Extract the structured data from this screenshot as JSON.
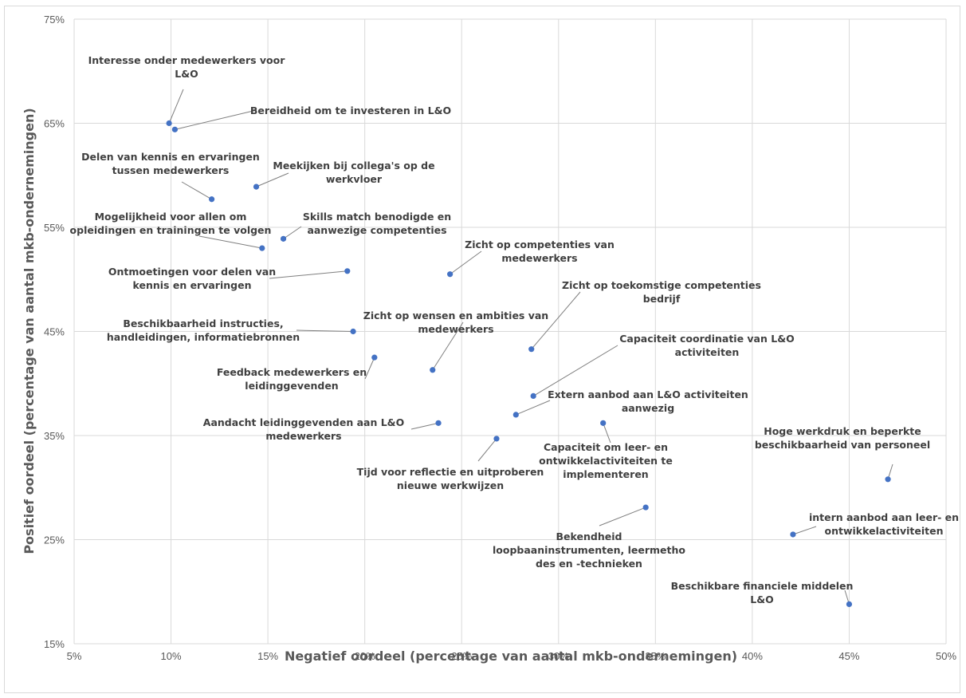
{
  "chart_data": {
    "type": "scatter",
    "title": "",
    "xlabel": "Negatief oordeel (percentage van aantal mkb-ondernemingen)",
    "ylabel": "Positief oordeel (percentage van aantal mkb-ondernemingen)",
    "xlim": [
      5,
      50
    ],
    "ylim": [
      15,
      75
    ],
    "x_ticks": [
      "5%",
      "10%",
      "15%",
      "20%",
      "25%",
      "30%",
      "35%",
      "40%",
      "45%",
      "50%"
    ],
    "y_ticks": [
      "15%",
      "25%",
      "35%",
      "45%",
      "55%",
      "65%",
      "75%"
    ],
    "grid": "vertical and horizontal",
    "legend": "none",
    "marker_color": "#4472c4",
    "points": [
      {
        "x": 9.9,
        "y": 65.0,
        "label": [
          "Interesse onder medewerkers voor",
          "L&O"
        ]
      },
      {
        "x": 10.2,
        "y": 64.4,
        "label": [
          "Bereidheid om te investeren in L&O"
        ]
      },
      {
        "x": 12.1,
        "y": 57.7,
        "label": [
          "Delen van kennis en ervaringen",
          "tussen medewerkers"
        ]
      },
      {
        "x": 14.4,
        "y": 58.9,
        "label": [
          "Meekijken bij collega's op de",
          "werkvloer"
        ]
      },
      {
        "x": 14.7,
        "y": 53.0,
        "label": [
          "Mogelijkheid voor allen om",
          "opleidingen en trainingen te volgen"
        ]
      },
      {
        "x": 15.8,
        "y": 53.9,
        "label": [
          "Skills match benodigde en",
          "aanwezige competenties"
        ]
      },
      {
        "x": 19.1,
        "y": 50.8,
        "label": [
          "Ontmoetingen voor delen van",
          "kennis en ervaringen"
        ]
      },
      {
        "x": 24.4,
        "y": 50.5,
        "label": [
          "Zicht op competenties van",
          "medewerkers"
        ]
      },
      {
        "x": 19.4,
        "y": 45.0,
        "label": [
          "Beschikbaarheid instructies,",
          "handleidingen, informatiebronnen"
        ]
      },
      {
        "x": 28.6,
        "y": 43.3,
        "label": [
          "Zicht op toekomstige competenties",
          "bedrijf"
        ]
      },
      {
        "x": 20.5,
        "y": 42.5,
        "label": [
          "Feedback medewerkers en",
          "leidinggevenden"
        ]
      },
      {
        "x": 23.5,
        "y": 41.3,
        "label": [
          "Zicht op wensen en ambities van",
          "medewerkers"
        ]
      },
      {
        "x": 28.7,
        "y": 38.8,
        "label": [
          "Capaciteit coordinatie van L&O",
          "activiteiten"
        ]
      },
      {
        "x": 27.8,
        "y": 37.0,
        "label": [
          "Extern aanbod aan L&O activiteiten",
          "aanwezig"
        ]
      },
      {
        "x": 23.8,
        "y": 36.2,
        "label": [
          "Aandacht leidinggevenden aan L&O",
          "medewerkers"
        ]
      },
      {
        "x": 32.3,
        "y": 36.2,
        "label": [
          "Capaciteit om leer- en",
          "ontwikkelactiviteiten te",
          "implementeren"
        ]
      },
      {
        "x": 26.8,
        "y": 34.7,
        "label": [
          "Tijd voor reflectie en uitproberen",
          "nieuwe werkwijzen"
        ]
      },
      {
        "x": 47.0,
        "y": 30.8,
        "label": [
          "Hoge werkdruk en beperkte",
          "beschikbaarheid van personeel"
        ]
      },
      {
        "x": 34.5,
        "y": 28.1,
        "label": [
          "Bekendheid",
          "loopbaaninstrumenten,  leermetho",
          "des en -technieken"
        ]
      },
      {
        "x": 42.1,
        "y": 25.5,
        "label": [
          "intern aanbod aan leer- en",
          "ontwikkelactiviteiten"
        ]
      },
      {
        "x": 45.0,
        "y": 18.8,
        "label": [
          "Beschikbare financiele middelen",
          "L&O"
        ]
      }
    ]
  }
}
